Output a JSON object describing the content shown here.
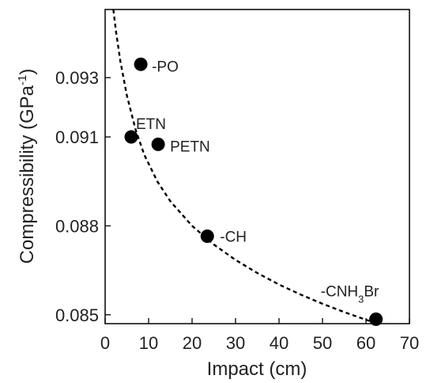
{
  "chart_data": {
    "type": "scatter",
    "title": "",
    "xlabel": "Impact (cm)",
    "ylabel": {
      "main": "Compressibility (GPa",
      "sup": "-1",
      "close": ")"
    },
    "xlim": [
      0,
      70
    ],
    "ylim": [
      0.0847,
      0.0953
    ],
    "xticks": [
      0,
      10,
      20,
      30,
      40,
      50,
      60,
      70
    ],
    "xtick_labels": [
      "0",
      "10",
      "20",
      "30",
      "40",
      "50",
      "60",
      "70"
    ],
    "yticks": [
      0.085,
      0.088,
      0.091,
      0.093
    ],
    "ytick_labels": [
      "0.085",
      "0.088",
      "0.091",
      "0.093"
    ],
    "grid": false,
    "points": [
      {
        "x": 8.2,
        "y": 0.09345,
        "label": "-PO",
        "label_sub": "",
        "label_tail": ""
      },
      {
        "x": 6.0,
        "y": 0.091,
        "label": "ETN",
        "label_sub": "",
        "label_tail": ""
      },
      {
        "x": 12.2,
        "y": 0.09075,
        "label": "PETN",
        "label_sub": "",
        "label_tail": ""
      },
      {
        "x": 23.5,
        "y": 0.08765,
        "label": "-CH",
        "label_sub": "",
        "label_tail": ""
      },
      {
        "x": 62.3,
        "y": 0.08485,
        "label": "-CNH",
        "label_sub": "3",
        "label_tail": "Br"
      }
    ],
    "fit_curve": {
      "style": "dashed",
      "color": "#000000",
      "x": [
        1.9,
        2.5,
        3.5,
        5,
        7,
        9,
        12,
        15,
        20,
        25,
        30,
        35,
        40,
        45,
        50,
        55,
        60,
        62.5
      ],
      "y": [
        0.0953,
        0.09455,
        0.09355,
        0.0924,
        0.09125,
        0.0904,
        0.0895,
        0.08883,
        0.088,
        0.08737,
        0.08685,
        0.08641,
        0.08602,
        0.08568,
        0.08537,
        0.08509,
        0.08483,
        0.08471
      ]
    },
    "marker_color": "#000000"
  }
}
